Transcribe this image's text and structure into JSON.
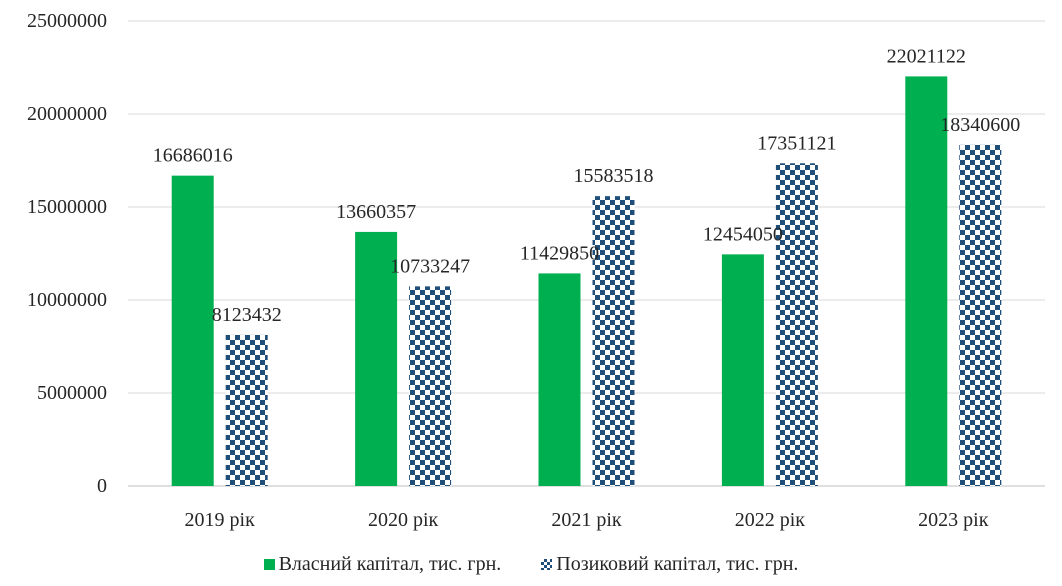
{
  "colors": {
    "own_capital": "#00b050",
    "borrowed_capital_pattern": "#1f4e79",
    "gridline": "#d9d9d9",
    "axis": "#bfbfbf",
    "text": "#262626"
  },
  "legend": {
    "own_capital": "Власний капітал, тис. грн.",
    "borrowed_capital": "Позиковий капітал, тис. грн."
  },
  "chart_data": {
    "type": "bar",
    "title": "",
    "xlabel": "",
    "ylabel": "",
    "categories": [
      "2019 рік",
      "2020 рік",
      "2021 рік",
      "2022 рік",
      "2023 рік"
    ],
    "series": [
      {
        "name": "Власний капітал, тис. грн.",
        "values": [
          16686016,
          13660357,
          11429850,
          12454050,
          22021122
        ],
        "fill": "solid"
      },
      {
        "name": "Позиковий капітал, тис. грн.",
        "values": [
          8123432,
          10733247,
          15583518,
          17351121,
          18340600
        ],
        "fill": "checkerboard"
      }
    ],
    "ylim": [
      0,
      25000000
    ],
    "yticks": [
      0,
      5000000,
      10000000,
      15000000,
      20000000,
      25000000
    ],
    "ytick_labels": [
      "0",
      "5000000",
      "10000000",
      "15000000",
      "20000000",
      "25000000"
    ],
    "grid": "horizontal",
    "legend_position": "bottom",
    "data_labels": true
  }
}
